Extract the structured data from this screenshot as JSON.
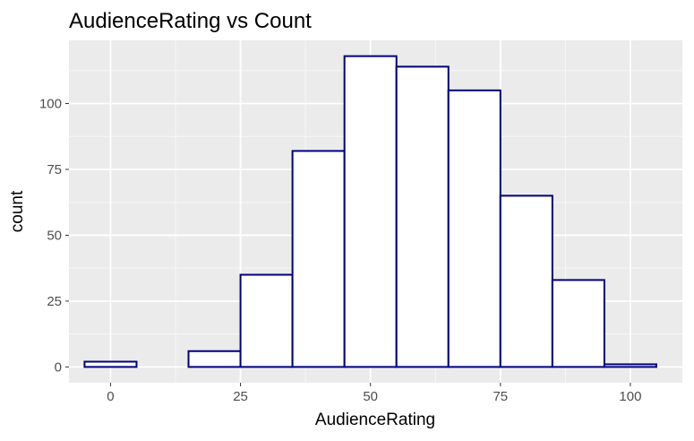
{
  "chart_data": {
    "type": "bar",
    "subtype": "histogram",
    "title": "AudienceRating vs Count",
    "xlabel": "AudienceRating",
    "ylabel": "count",
    "xlim": [
      -8,
      110
    ],
    "ylim": [
      -6,
      124
    ],
    "x_ticks": [
      0,
      25,
      50,
      75,
      100
    ],
    "y_ticks": [
      0,
      25,
      50,
      75,
      100
    ],
    "grid": true,
    "legend": "none",
    "colors": {
      "bar_fill": "#ffffff",
      "bar_outline": "#000080",
      "panel_background": "#ebebeb",
      "gridline": "#ffffff"
    },
    "bins": [
      {
        "x_start": -5,
        "x_end": 5,
        "count": 2
      },
      {
        "x_start": 5,
        "x_end": 15,
        "count": 0
      },
      {
        "x_start": 15,
        "x_end": 25,
        "count": 6
      },
      {
        "x_start": 25,
        "x_end": 35,
        "count": 35
      },
      {
        "x_start": 35,
        "x_end": 45,
        "count": 82
      },
      {
        "x_start": 45,
        "x_end": 55,
        "count": 118
      },
      {
        "x_start": 55,
        "x_end": 65,
        "count": 114
      },
      {
        "x_start": 65,
        "x_end": 75,
        "count": 105
      },
      {
        "x_start": 75,
        "x_end": 85,
        "count": 65
      },
      {
        "x_start": 85,
        "x_end": 95,
        "count": 33
      },
      {
        "x_start": 95,
        "x_end": 105,
        "count": 1
      }
    ]
  }
}
